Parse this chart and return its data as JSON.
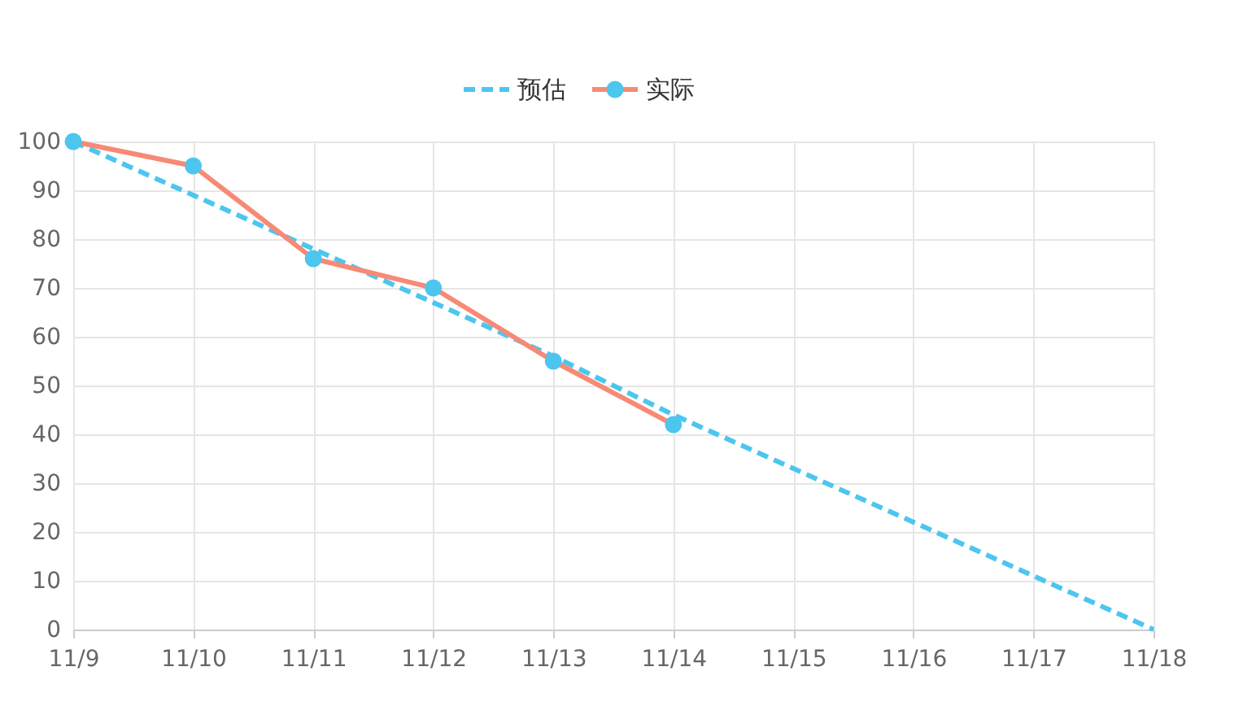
{
  "chart_data": {
    "type": "line",
    "categories": [
      "11/9",
      "11/10",
      "11/11",
      "11/12",
      "11/13",
      "11/14",
      "11/15",
      "11/16",
      "11/17",
      "11/18"
    ],
    "series": [
      {
        "name": "预估",
        "color": "#4cc6ee",
        "line_style": "dashed",
        "marker": "none",
        "values": [
          100,
          89,
          78,
          67,
          56,
          44,
          33,
          22,
          11,
          0
        ]
      },
      {
        "name": "实际",
        "color": "#f78a76",
        "line_style": "solid",
        "marker": "circle",
        "colors": [
          "#4cc6ee",
          "#4cc6ee",
          "#4cc6ee",
          "#4cc6ee",
          "#4cc6ee",
          "#4cc6ee",
          "#4cc6ee",
          "#4cc6ee",
          "#4cc6ee",
          "#4cc6ee"
        ],
        "values": [
          100,
          95,
          76,
          70,
          55,
          42,
          null,
          null,
          null,
          null
        ]
      }
    ],
    "ylim": [
      0,
      100
    ],
    "yticks": [
      0,
      10,
      20,
      30,
      40,
      50,
      60,
      70,
      80,
      90,
      100
    ],
    "grid": true,
    "legend": "top"
  }
}
